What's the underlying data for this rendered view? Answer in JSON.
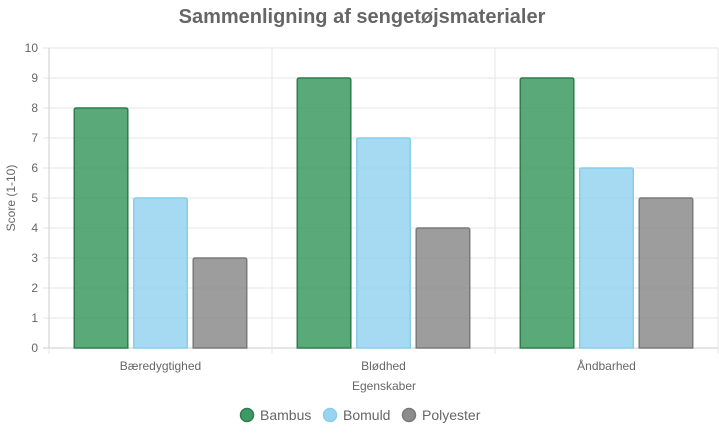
{
  "chart_data": {
    "type": "bar",
    "title": "Sammenligning af sengetøjsmaterialer",
    "xlabel": "Egenskaber",
    "ylabel": "Score (1-10)",
    "ylim": [
      0,
      10
    ],
    "yticks": [
      "0",
      "1",
      "2",
      "3",
      "4",
      "5",
      "6",
      "7",
      "8",
      "9",
      "10"
    ],
    "categories": [
      "Bæredygtighed",
      "Blødhed",
      "Åndbarhed"
    ],
    "series": [
      {
        "name": "Bambus",
        "values": [
          8,
          9,
          9
        ],
        "fill": "#3d9a62",
        "stroke": "#2e7d4f"
      },
      {
        "name": "Bomuld",
        "values": [
          5,
          7,
          6
        ],
        "fill": "#97d4f0",
        "stroke": "#87ceeb"
      },
      {
        "name": "Polyester",
        "values": [
          3,
          4,
          5
        ],
        "fill": "#8c8c8c",
        "stroke": "#7a7a7a"
      }
    ],
    "grid": true,
    "legend": "bottom"
  }
}
